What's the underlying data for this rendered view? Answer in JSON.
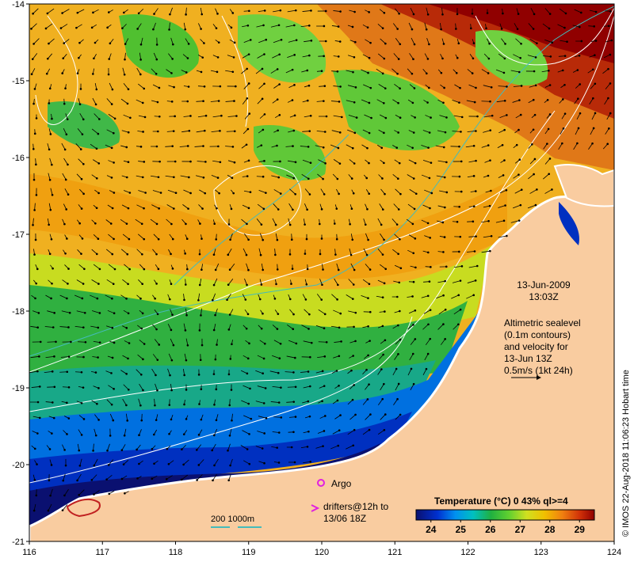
{
  "map": {
    "x_ticks": [
      "116",
      "117",
      "118",
      "119",
      "120",
      "121",
      "122",
      "123",
      "124"
    ],
    "y_ticks": [
      "-14",
      "-15",
      "-16",
      "-17",
      "-18",
      "-19",
      "-20",
      "-21"
    ],
    "lon_range": [
      116,
      124
    ],
    "lat_range": [
      -21,
      -14
    ]
  },
  "annotations": {
    "date": "13-Jun-2009",
    "time": "13:03Z",
    "altimetry_lines": [
      "Altimetric sealevel",
      "(0.1m contours)",
      "and velocity for",
      "13-Jun 13Z",
      "0.5m/s (1kt 24h)"
    ],
    "argo_label": "Argo",
    "drifter_lines": [
      "drifters@12h to",
      "13/06 18Z"
    ],
    "scale_label": "200  1000m",
    "credit": "© IMOS 22-Aug-2018 11:06:23 Hobart time"
  },
  "legend": {
    "title": "Temperature (°C) 0 43% ql>=4",
    "ticks": [
      "24",
      "25",
      "26",
      "27",
      "28",
      "29"
    ],
    "range": [
      23.5,
      29.5
    ]
  },
  "colors": {
    "land": "#f9cca0",
    "coast": "#ffffff",
    "arrow": "#000000",
    "contour": "#ffffff",
    "isobath": "#44bbbb",
    "argo": "#e020e0",
    "drifter": "#e020e0"
  }
}
